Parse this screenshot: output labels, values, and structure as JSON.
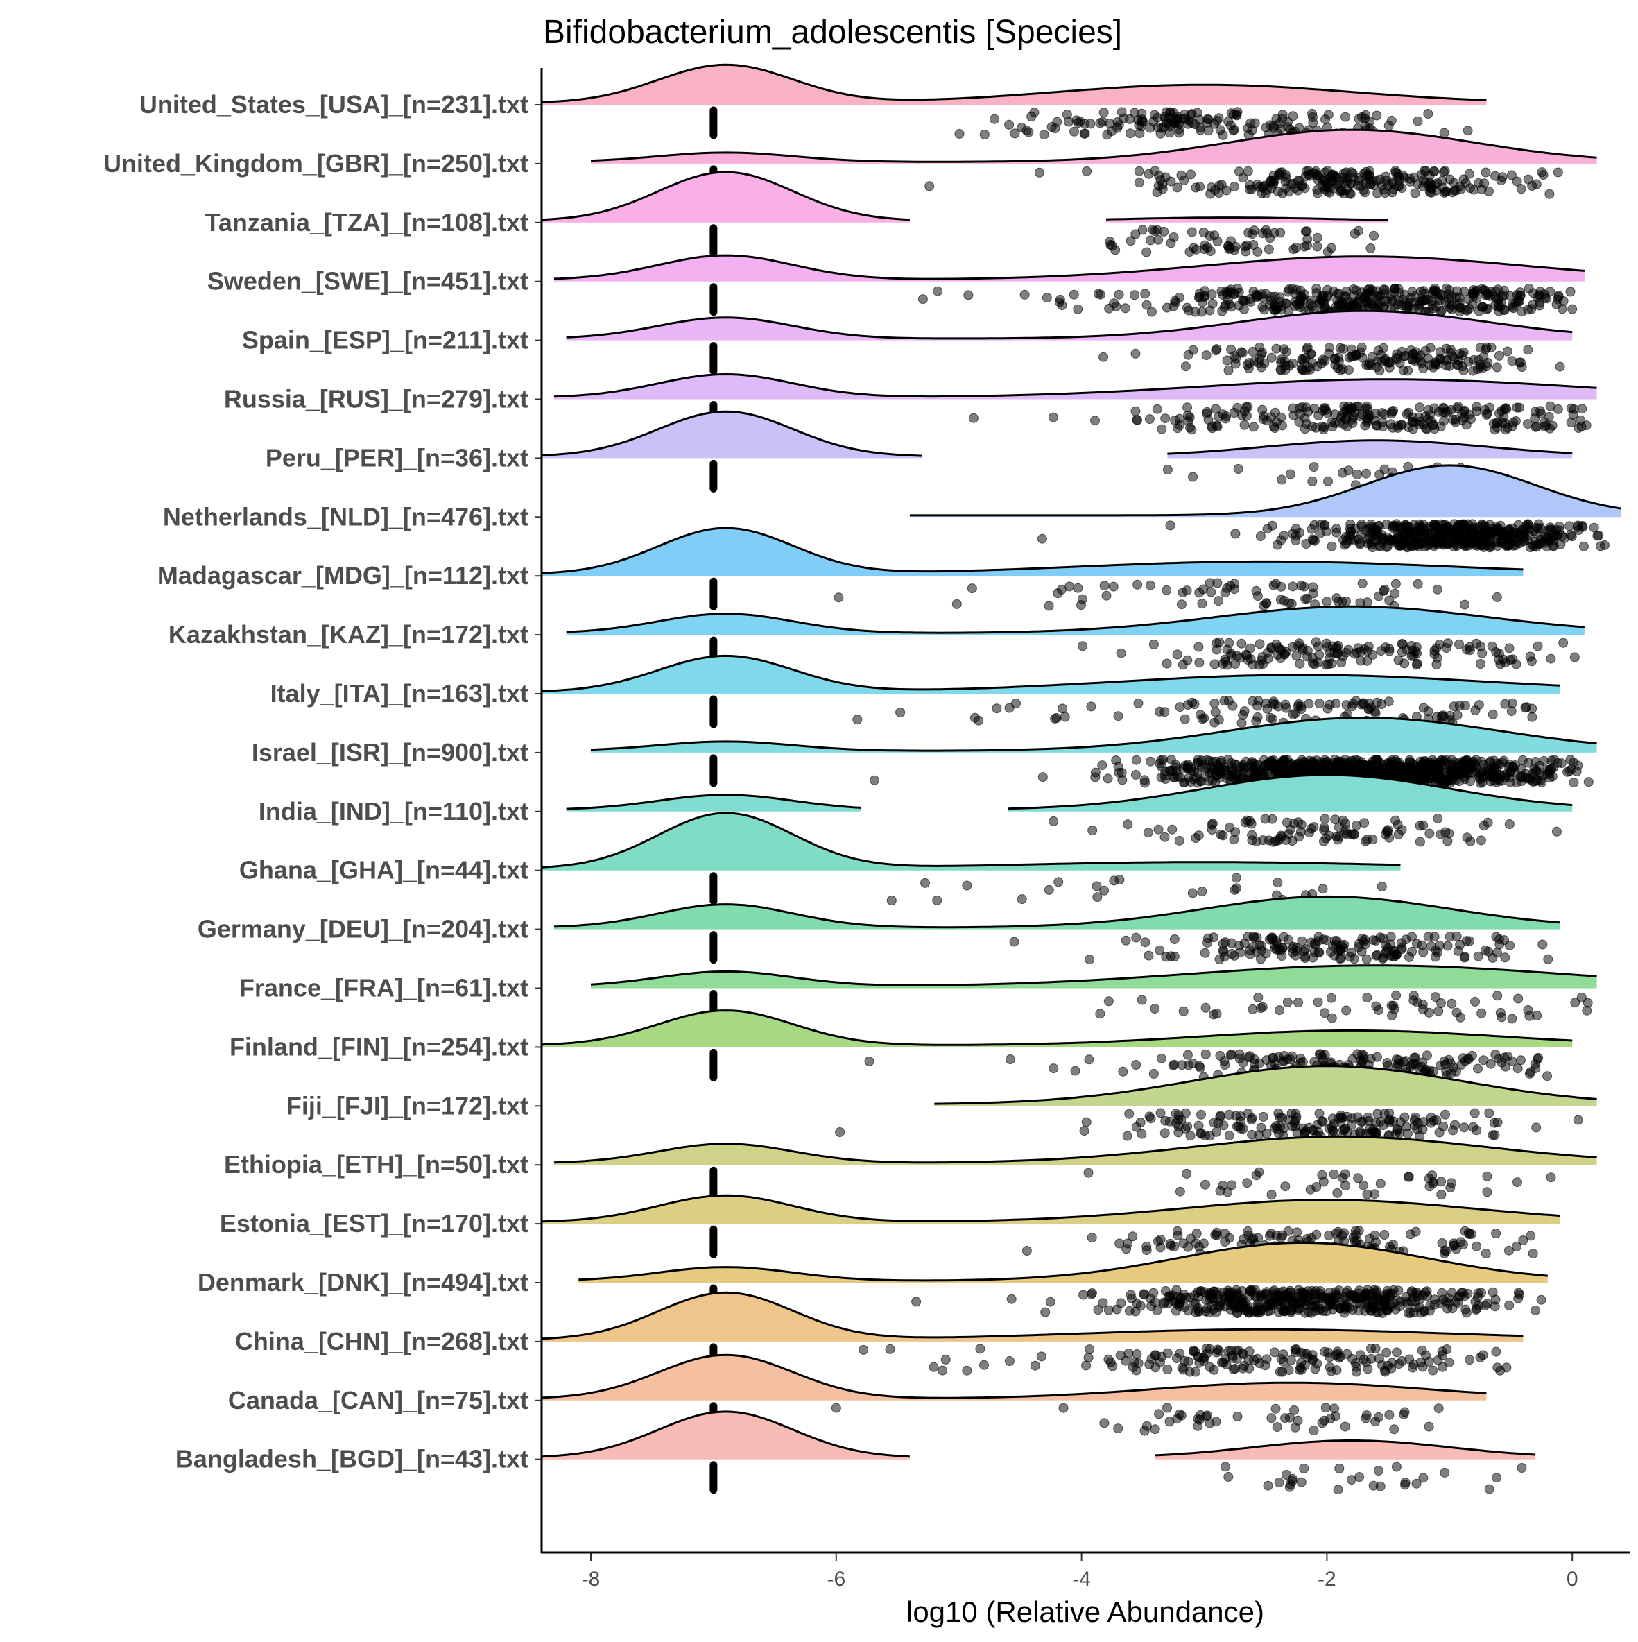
{
  "chart_data": {
    "type": "ridgeline",
    "title": "Bifidobacterium_adolescentis [Species]",
    "xlabel": "log10 (Relative Abundance)",
    "ylabel": "",
    "xlim": [
      -8.4,
      0.4
    ],
    "x_ticks": [
      -8,
      -6,
      -4,
      -2,
      0
    ],
    "x_tick_labels": [
      "-8",
      "-6",
      "-4",
      "-2",
      "0"
    ],
    "grid": false,
    "legend": "none",
    "zero_value": -7,
    "note": "",
    "groups": [
      {
        "label": "United_States_[USA]_[n=231].txt",
        "n": 231,
        "color": "#F9B1C4",
        "zero_h": 0.69,
        "main_mu": -3.0,
        "main_sd": 1.2,
        "main_h": 0.33,
        "segments": [
          [
            -8.4,
            -0.7
          ]
        ]
      },
      {
        "label": "United_Kingdom_[GBR]_[n=250].txt",
        "n": 250,
        "color": "#F8B0D8",
        "zero_h": 0.17,
        "main_mu": -1.8,
        "main_sd": 1.0,
        "main_h": 0.58,
        "segments": [
          [
            -8.0,
            0.2
          ]
        ]
      },
      {
        "label": "Tanzania_[TZA]_[n=108].txt",
        "n": 108,
        "color": "#F9B0E6",
        "zero_h": 0.88,
        "main_mu": -2.8,
        "main_sd": 0.8,
        "main_h": 0.06,
        "segments": [
          [
            -8.4,
            -5.4
          ],
          [
            -3.8,
            -1.5
          ]
        ]
      },
      {
        "label": "Sweden_[SWE]_[n=451].txt",
        "n": 451,
        "color": "#F3B0F0",
        "zero_h": 0.44,
        "main_mu": -1.7,
        "main_sd": 1.3,
        "main_h": 0.42,
        "segments": [
          [
            -8.3,
            0.1
          ]
        ]
      },
      {
        "label": "Spain_[ESP]_[n=211].txt",
        "n": 211,
        "color": "#E9B6F6",
        "zero_h": 0.38,
        "main_mu": -1.7,
        "main_sd": 1.0,
        "main_h": 0.5,
        "segments": [
          [
            -8.2,
            0.0
          ]
        ]
      },
      {
        "label": "Russia_[RUS]_[n=279].txt",
        "n": 279,
        "color": "#DDBAF8",
        "zero_h": 0.42,
        "main_mu": -1.5,
        "main_sd": 1.5,
        "main_h": 0.33,
        "segments": [
          [
            -8.3,
            0.2
          ]
        ]
      },
      {
        "label": "Peru_[PER]_[n=36].txt",
        "n": 36,
        "color": "#CCC0F9",
        "zero_h": 0.81,
        "main_mu": -1.6,
        "main_sd": 0.9,
        "main_h": 0.29,
        "segments": [
          [
            -8.4,
            -5.3
          ],
          [
            -3.3,
            0.0
          ]
        ]
      },
      {
        "label": "Netherlands_[NLD]_[n=476].txt",
        "n": 476,
        "color": "#AFC8F9",
        "zero_h": 0.0,
        "main_mu": -1.0,
        "main_sd": 0.7,
        "main_h": 0.9,
        "segments": [
          [
            -5.4,
            0.4
          ]
        ]
      },
      {
        "label": "Madagascar_[MDG]_[n=112].txt",
        "n": 112,
        "color": "#80CEF8",
        "zero_h": 0.83,
        "main_mu": -2.5,
        "main_sd": 1.5,
        "main_h": 0.23,
        "segments": [
          [
            -8.4,
            -0.4
          ]
        ]
      },
      {
        "label": "Kazakhstan_[KAZ]_[n=172].txt",
        "n": 172,
        "color": "#80D3F3",
        "zero_h": 0.35,
        "main_mu": -1.8,
        "main_sd": 1.1,
        "main_h": 0.48,
        "segments": [
          [
            -8.2,
            0.1
          ]
        ]
      },
      {
        "label": "Italy_[ITA]_[n=163].txt",
        "n": 163,
        "color": "#80D9EB",
        "zero_h": 0.65,
        "main_mu": -2.2,
        "main_sd": 1.5,
        "main_h": 0.31,
        "segments": [
          [
            -8.4,
            -0.1
          ]
        ]
      },
      {
        "label": "Israel_[ISR]_[n=900].txt",
        "n": 900,
        "color": "#80DCDF",
        "zero_h": 0.17,
        "main_mu": -1.7,
        "main_sd": 1.1,
        "main_h": 0.6,
        "segments": [
          [
            -8.0,
            0.2
          ]
        ]
      },
      {
        "label": "India_[IND]_[n=110].txt",
        "n": 110,
        "color": "#80DCD0",
        "zero_h": 0.27,
        "main_mu": -2.0,
        "main_sd": 1.0,
        "main_h": 0.63,
        "segments": [
          [
            -8.2,
            -5.8
          ],
          [
            -4.6,
            0.0
          ]
        ]
      },
      {
        "label": "Ghana_[GHA]_[n=44].txt",
        "n": 44,
        "color": "#80DCC4",
        "zero_h": 1.0,
        "main_mu": -3.0,
        "main_sd": 1.5,
        "main_h": 0.12,
        "segments": [
          [
            -8.4,
            -1.4
          ]
        ]
      },
      {
        "label": "Germany_[DEU]_[n=204].txt",
        "n": 204,
        "color": "#80DCAC",
        "zero_h": 0.42,
        "main_mu": -2.0,
        "main_sd": 1.0,
        "main_h": 0.56,
        "segments": [
          [
            -8.3,
            -0.1
          ]
        ]
      },
      {
        "label": "France_[FRA]_[n=61].txt",
        "n": 61,
        "color": "#8EDC98",
        "zero_h": 0.27,
        "main_mu": -1.6,
        "main_sd": 1.5,
        "main_h": 0.38,
        "segments": [
          [
            -8.0,
            0.2
          ]
        ]
      },
      {
        "label": "Finland_[FIN]_[n=254].txt",
        "n": 254,
        "color": "#A6D982",
        "zero_h": 0.63,
        "main_mu": -1.8,
        "main_sd": 1.2,
        "main_h": 0.27,
        "segments": [
          [
            -8.4,
            0.0
          ]
        ]
      },
      {
        "label": "Fiji_[FJI]_[n=172].txt",
        "n": 172,
        "color": "#C3D690",
        "zero_h": 0.0,
        "main_mu": -2.0,
        "main_sd": 1.1,
        "main_h": 0.69,
        "segments": [
          [
            -5.2,
            0.2
          ]
        ]
      },
      {
        "label": "Ethiopia_[ETH]_[n=50].txt",
        "n": 50,
        "color": "#CFD38A",
        "zero_h": 0.35,
        "main_mu": -1.9,
        "main_sd": 1.2,
        "main_h": 0.48,
        "segments": [
          [
            -8.3,
            0.2
          ]
        ]
      },
      {
        "label": "Estonia_[EST]_[n=170].txt",
        "n": 170,
        "color": "#DBCF86",
        "zero_h": 0.48,
        "main_mu": -2.0,
        "main_sd": 1.2,
        "main_h": 0.4,
        "segments": [
          [
            -8.4,
            -0.1
          ]
        ]
      },
      {
        "label": "Denmark_[DNK]_[n=494].txt",
        "n": 494,
        "color": "#E5CA80",
        "zero_h": 0.25,
        "main_mu": -2.2,
        "main_sd": 1.0,
        "main_h": 0.69,
        "segments": [
          [
            -8.1,
            -0.2
          ]
        ]
      },
      {
        "label": "China_[CHN]_[n=268].txt",
        "n": 268,
        "color": "#EEC58A",
        "zero_h": 0.85,
        "main_mu": -2.5,
        "main_sd": 1.5,
        "main_h": 0.19,
        "segments": [
          [
            -8.4,
            -0.4
          ]
        ]
      },
      {
        "label": "Canada_[CAN]_[n=75].txt",
        "n": 75,
        "color": "#F5C0A2",
        "zero_h": 0.79,
        "main_mu": -2.3,
        "main_sd": 1.1,
        "main_h": 0.29,
        "segments": [
          [
            -8.4,
            -0.7
          ]
        ]
      },
      {
        "label": "Bangladesh_[BGD]_[n=43].txt",
        "n": 43,
        "color": "#F8BBB5",
        "zero_h": 0.83,
        "main_mu": -1.8,
        "main_sd": 0.8,
        "main_h": 0.31,
        "segments": [
          [
            -8.4,
            -5.4
          ],
          [
            -3.4,
            -0.3
          ]
        ]
      }
    ]
  }
}
